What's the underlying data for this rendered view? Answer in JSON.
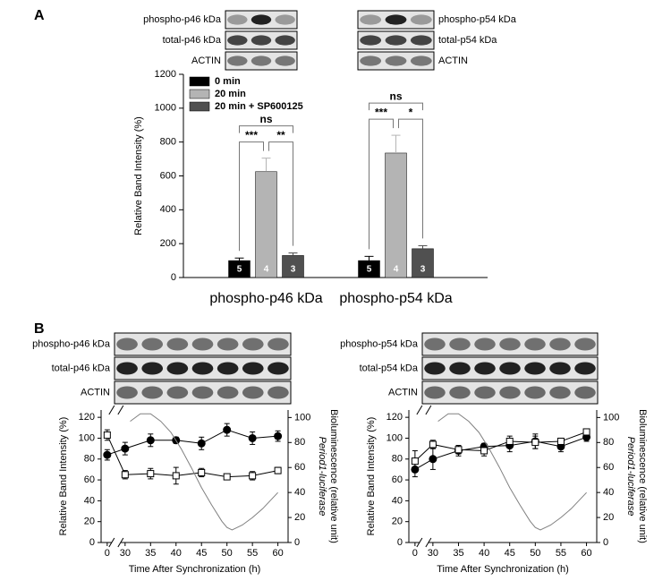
{
  "panel_labels": [
    "A",
    "B"
  ],
  "blots": [
    {
      "labels": [
        "phospho-p46 kDa",
        "total-p46 kDa",
        "ACTIN"
      ]
    },
    {
      "labels": [
        "phospho-p54 kDa",
        "total-p54 kDa",
        "ACTIN"
      ]
    },
    {
      "labels": [
        "phospho-p46 kDa",
        "total-p46 kDa",
        "ACTIN"
      ]
    },
    {
      "labels": [
        "phospho-p54 kDa",
        "total-p54 kDa",
        "ACTIN"
      ]
    }
  ],
  "chart_data": [
    {
      "type": "bar",
      "categories": [
        "phospho-p46 kDa",
        "phospho-p54 kDa"
      ],
      "ylabel": "Relative Band Intensity (%)",
      "ylim": [
        0,
        1200
      ],
      "yticks": [
        0,
        200,
        400,
        600,
        800,
        1000,
        1200
      ],
      "legend": "upper left",
      "series": [
        {
          "name": "0 min",
          "color": "#000000",
          "values": [
            100,
            100
          ],
          "errors": [
            15,
            25
          ],
          "n": [
            5,
            5
          ]
        },
        {
          "name": "20 min",
          "color": "#b4b4b4",
          "values": [
            625,
            735
          ],
          "errors": [
            80,
            105
          ],
          "n": [
            4,
            4
          ]
        },
        {
          "name": "20 min + SP600125",
          "color": "#505050",
          "values": [
            130,
            170
          ],
          "errors": [
            15,
            18
          ],
          "n": [
            3,
            3
          ]
        }
      ],
      "significance": [
        [
          "***",
          "**",
          "ns"
        ],
        [
          "***",
          "*",
          "ns"
        ]
      ]
    },
    {
      "type": "line",
      "xlabel": "Time After Synchronization (h)",
      "ylabel": "Relative Band Intensity (%)",
      "y2label": [
        "Period1-luciferase",
        "Bioluminescence (relative unit)"
      ],
      "xlim": [
        -1.2,
        62
      ],
      "xticks": [
        0,
        30,
        35,
        40,
        45,
        50,
        55,
        60
      ],
      "axis_break": true,
      "ylim": [
        0,
        127
      ],
      "yticks": [
        0,
        20,
        40,
        60,
        80,
        100,
        120
      ],
      "y2lim": [
        0,
        106
      ],
      "y2ticks": [
        0,
        20,
        40,
        60,
        80,
        100
      ],
      "series": [
        {
          "marker": "circle",
          "color": "#000000",
          "x": [
            0,
            30,
            35,
            40,
            45,
            50,
            55,
            60
          ],
          "values": [
            84,
            90,
            98,
            98,
            95,
            108,
            100,
            102
          ],
          "errors": [
            5,
            6,
            6,
            3,
            6,
            6,
            6,
            5
          ]
        },
        {
          "marker": "square-open",
          "color": "#000000",
          "x": [
            0,
            30,
            35,
            40,
            45,
            50,
            55,
            60
          ],
          "values": [
            103,
            65,
            66,
            64,
            67,
            63,
            64,
            69
          ],
          "errors": [
            5,
            4,
            5,
            8,
            4,
            2,
            4,
            3
          ]
        },
        {
          "axis": "y2",
          "color": "#808080",
          "x": [
            31,
            33,
            35,
            37,
            39,
            41,
            43,
            45,
            47,
            49,
            50,
            51,
            53,
            55,
            57,
            60
          ],
          "values": [
            97,
            103,
            103,
            97,
            88,
            75,
            60,
            44,
            30,
            17,
            12,
            10,
            14,
            20,
            27,
            40
          ]
        }
      ]
    },
    {
      "type": "line",
      "xlabel": "Time After Synchronization (h)",
      "ylabel": "Relative Band Intensity (%)",
      "y2label": [
        "Period1-luciferase",
        "Bioluminescence (relative unit)"
      ],
      "xlim": [
        -1.2,
        62
      ],
      "xticks": [
        0,
        30,
        35,
        40,
        45,
        50,
        55,
        60
      ],
      "axis_break": true,
      "ylim": [
        0,
        127
      ],
      "yticks": [
        0,
        20,
        40,
        60,
        80,
        100,
        120
      ],
      "y2lim": [
        0,
        106
      ],
      "y2ticks": [
        0,
        20,
        40,
        60,
        80,
        100
      ],
      "series": [
        {
          "marker": "circle",
          "color": "#000000",
          "x": [
            0,
            30,
            35,
            40,
            45,
            50,
            55,
            60
          ],
          "values": [
            70,
            80,
            88,
            92,
            93,
            97,
            92,
            101
          ],
          "errors": [
            7,
            10,
            5,
            3,
            6,
            7,
            5,
            4
          ]
        },
        {
          "marker": "square-open",
          "color": "#000000",
          "x": [
            0,
            30,
            35,
            40,
            45,
            50,
            55,
            60
          ],
          "values": [
            78,
            94,
            89,
            88,
            97,
            96,
            97,
            106
          ],
          "errors": [
            10,
            4,
            4,
            5,
            5,
            6,
            3,
            2
          ]
        },
        {
          "axis": "y2",
          "color": "#808080",
          "x": [
            31,
            33,
            35,
            37,
            39,
            41,
            43,
            45,
            47,
            49,
            50,
            51,
            53,
            55,
            57,
            60
          ],
          "values": [
            97,
            103,
            103,
            97,
            88,
            75,
            60,
            44,
            30,
            17,
            12,
            10,
            14,
            20,
            27,
            40
          ]
        }
      ]
    }
  ]
}
